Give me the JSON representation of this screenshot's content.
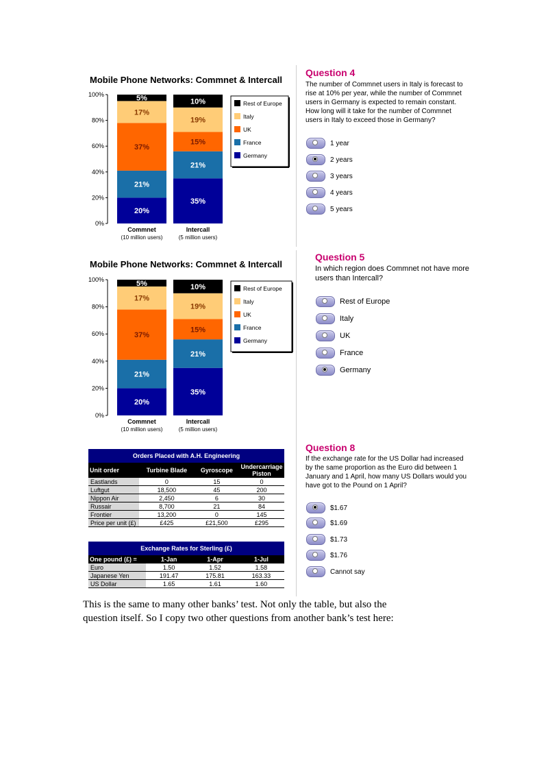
{
  "chart_data": [
    {
      "type": "bar",
      "stacked": true,
      "title": "Mobile Phone Networks: Commnet & Intercall",
      "categories": [
        "Commnet",
        "Intercall"
      ],
      "category_subtitles": [
        "(10 million users)",
        "(5 million users)"
      ],
      "yticks": [
        "0%",
        "20%",
        "40%",
        "60%",
        "80%",
        "100%"
      ],
      "ylim": [
        0,
        100
      ],
      "series": [
        {
          "name": "Germany",
          "color": "#000099",
          "values": [
            20,
            35
          ]
        },
        {
          "name": "France",
          "color": "#1a6fa8",
          "values": [
            21,
            21
          ]
        },
        {
          "name": "UK",
          "color": "#ff6600",
          "values": [
            37,
            15
          ]
        },
        {
          "name": "Italy",
          "color": "#ffcc77",
          "values": [
            17,
            19
          ]
        },
        {
          "name": "Rest of Europe",
          "color": "#000000",
          "values": [
            5,
            10
          ]
        }
      ],
      "legend": [
        "Rest of Europe",
        "Italy",
        "UK",
        "France",
        "Germany"
      ],
      "legend_position": "right"
    },
    {
      "type": "bar",
      "stacked": true,
      "title": "Mobile Phone Networks: Commnet & Intercall",
      "categories": [
        "Commnet",
        "Intercall"
      ],
      "category_subtitles": [
        "(10 million users)",
        "(5 million users)"
      ],
      "yticks": [
        "0%",
        "20%",
        "40%",
        "60%",
        "80%",
        "100%"
      ],
      "ylim": [
        0,
        100
      ],
      "series": [
        {
          "name": "Germany",
          "color": "#000099",
          "values": [
            20,
            35
          ]
        },
        {
          "name": "France",
          "color": "#1a6fa8",
          "values": [
            21,
            21
          ]
        },
        {
          "name": "UK",
          "color": "#ff6600",
          "values": [
            37,
            15
          ]
        },
        {
          "name": "Italy",
          "color": "#ffcc77",
          "values": [
            17,
            19
          ]
        },
        {
          "name": "Rest of Europe",
          "color": "#000000",
          "values": [
            5,
            10
          ]
        }
      ],
      "legend": [
        "Rest of Europe",
        "Italy",
        "UK",
        "France",
        "Germany"
      ],
      "legend_position": "right"
    }
  ],
  "q4": {
    "title": "Question 4",
    "text": [
      "The number of Commnet users in Italy is forecast to",
      "rise at 10% per year, while the number of Commnet",
      "users in Germany is expected to remain constant.",
      "How long will it take for the number of Commnet",
      "users in Italy to exceed those in Germany?"
    ],
    "options": [
      "1 year",
      "2 years",
      "3 years",
      "4 years",
      "5 years"
    ],
    "selected": 1
  },
  "q5": {
    "title": "Question 5",
    "text": [
      "In which region does Commnet not have more",
      "users than Intercall?"
    ],
    "options": [
      "Rest of Europe",
      "Italy",
      "UK",
      "France",
      "Germany"
    ],
    "selected": 4
  },
  "q8": {
    "title": "Question 8",
    "text": [
      "If the exchange rate for the US Dollar had increased",
      "by the same proportion as the Euro did between 1",
      "January and 1 April, how many US Dollars would you",
      "have got to the Pound on 1 April?"
    ],
    "options": [
      "$1.67",
      "$1.69",
      "$1.73",
      "$1.76",
      "Cannot say"
    ],
    "selected": 0
  },
  "orders_table": {
    "title": "Orders Placed with A.H. Engineering",
    "headers": [
      "Unit order",
      "Turbine Blade",
      "Gyroscope",
      "Undercarriage Piston"
    ],
    "rows": [
      [
        "Eastlands",
        "0",
        "15",
        "0"
      ],
      [
        "Luftgut",
        "18,500",
        "45",
        "200"
      ],
      [
        "Nippon Air",
        "2,450",
        "6",
        "30"
      ],
      [
        "Russair",
        "8,700",
        "21",
        "84"
      ],
      [
        "Frontier",
        "13,200",
        "0",
        "145"
      ],
      [
        "Price per unit (£)",
        "£425",
        "£21,500",
        "£295"
      ]
    ]
  },
  "exchange_table": {
    "title": "Exchange Rates for Sterling (£)",
    "headers": [
      "One pound (£) =",
      "1-Jan",
      "1-Apr",
      "1-Jul"
    ],
    "rows": [
      [
        "Euro",
        "1.50",
        "1.52",
        "1.58"
      ],
      [
        "Japanese Yen",
        "191.47",
        "175.81",
        "163.33"
      ],
      [
        "US Dollar",
        "1.65",
        "1.61",
        "1.60"
      ]
    ]
  },
  "body_text": {
    "line1": "This is the same to many other banks’ test. Not only the table, but also the",
    "line2": "question itself. So I copy two other questions from another bank’s test here:"
  }
}
